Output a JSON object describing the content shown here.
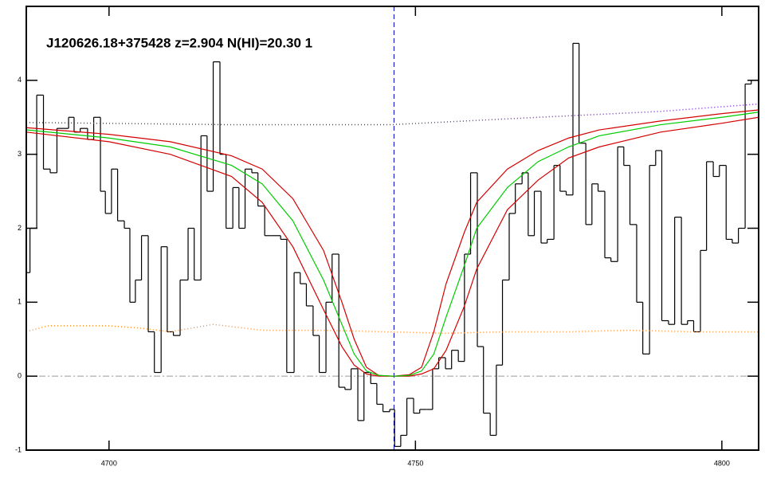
{
  "chart_data": {
    "type": "spectrum",
    "title": "J120626.18+375428 z=2.904 N(HI)=20.30 1",
    "xlim": [
      4686.5,
      4806.0
    ],
    "ylim": [
      -1,
      5
    ],
    "xticks": [
      4700,
      4750,
      4800
    ],
    "yticks": [
      -1,
      0,
      1,
      2,
      3,
      4
    ],
    "vline": {
      "x": 4746.5,
      "color": "#0000cc"
    },
    "hline": {
      "y": 0,
      "color": "#999999"
    },
    "series": [
      {
        "style": "step",
        "color": "#000000",
        "x": [
          4686.5,
          4687.1,
          4688.2,
          4689.3,
          4690.4,
          4691.5,
          4693.4,
          4694.3,
          4695.3,
          4696.5,
          4697.5,
          4698.6,
          4699.4,
          4700.4,
          4701.4,
          4702.5,
          4703.4,
          4704.3,
          4705.3,
          4706.4,
          4707.4,
          4708.5,
          4709.5,
          4710.5,
          4711.6,
          4712.9,
          4713.9,
          4715.0,
          4716.0,
          4717.0,
          4718.1,
          4719.1,
          4720.2,
          4721.2,
          4722.2,
          4723.3,
          4724.3,
          4725.4,
          4726.4,
          4728.0,
          4729.0,
          4730.2,
          4731.2,
          4732.2,
          4733.3,
          4734.3,
          4735.4,
          4736.4,
          4737.5,
          4738.5,
          4739.5,
          4740.6,
          4741.6,
          4742.7,
          4743.7,
          4744.7,
          4745.8,
          4746.6,
          4747.6,
          4748.6,
          4749.7,
          4750.7,
          4751.8,
          4752.8,
          4753.8,
          4754.9,
          4755.9,
          4757.0,
          4758.0,
          4759.0,
          4760.1,
          4761.1,
          4762.2,
          4763.2,
          4764.2,
          4765.3,
          4766.3,
          4767.4,
          4768.4,
          4769.4,
          4770.5,
          4771.5,
          4772.6,
          4773.6,
          4774.6,
          4775.7,
          4776.7,
          4777.8,
          4778.8,
          4779.8,
          4780.9,
          4781.9,
          4783.0,
          4784.0,
          4785.0,
          4786.1,
          4787.1,
          4788.2,
          4789.2,
          4790.2,
          4791.3,
          4792.3,
          4793.4,
          4794.4,
          4795.4,
          4796.5,
          4797.5,
          4798.6,
          4799.6,
          4800.7,
          4801.7,
          4802.7,
          4803.8,
          4804.8
        ],
        "values": [
          1.4,
          2.0,
          3.8,
          2.8,
          2.75,
          3.35,
          3.5,
          3.3,
          3.35,
          3.2,
          3.5,
          2.5,
          2.2,
          2.8,
          2.1,
          2.0,
          1.0,
          1.3,
          1.9,
          0.6,
          0.05,
          1.75,
          0.6,
          0.55,
          1.3,
          2.0,
          1.3,
          3.25,
          2.5,
          4.25,
          3.0,
          2.0,
          2.55,
          2.0,
          2.8,
          2.75,
          2.3,
          1.9,
          1.9,
          1.85,
          0.05,
          1.4,
          1.25,
          0.95,
          0.55,
          0.05,
          1.0,
          1.65,
          -0.15,
          -0.18,
          0.1,
          -0.6,
          0.05,
          -0.1,
          -0.38,
          -0.48,
          -0.45,
          -0.95,
          -0.8,
          -0.3,
          -0.5,
          -0.45,
          -0.45,
          0.1,
          0.25,
          0.1,
          0.35,
          0.2,
          1.65,
          2.75,
          0.4,
          -0.5,
          -0.8,
          0.15,
          1.3,
          2.2,
          2.6,
          2.75,
          1.9,
          2.5,
          1.8,
          1.85,
          2.85,
          2.5,
          2.45,
          4.5,
          3.15,
          2.05,
          2.6,
          2.5,
          1.6,
          1.55,
          3.1,
          2.85,
          2.05,
          1.0,
          0.3,
          2.85,
          3.05,
          0.75,
          0.7,
          2.15,
          0.7,
          0.75,
          0.6,
          1.7,
          2.9,
          2.7,
          2.85,
          1.85,
          1.8,
          2.0,
          3.95,
          4.0
        ]
      },
      {
        "style": "dotted",
        "color": "#ff8c1a",
        "x": [
          4686.5,
          4690,
          4700,
          4705,
          4710,
          4717,
          4725,
          4735,
          4745,
          4755,
          4765,
          4775,
          4785,
          4795,
          4806
        ],
        "values": [
          0.6,
          0.68,
          0.68,
          0.65,
          0.6,
          0.7,
          0.62,
          0.62,
          0.6,
          0.58,
          0.6,
          0.6,
          0.62,
          0.6,
          0.6
        ]
      },
      {
        "style": "dotted",
        "color": "#7a1fd6",
        "x": [
          4686.5,
          4720,
          4746,
          4770,
          4790,
          4806
        ],
        "values": [
          3.43,
          3.4,
          3.4,
          3.5,
          3.58,
          3.68
        ]
      },
      {
        "style": "solid",
        "color": "#d40000",
        "x": [
          4686.5,
          4700,
          4710,
          4720,
          4725,
          4730,
          4735,
          4738,
          4740,
          4742,
          4744,
          4746.5,
          4749,
          4751,
          4753,
          4755,
          4758,
          4760,
          4765,
          4770,
          4775,
          4780,
          4790,
          4800,
          4806
        ],
        "values": [
          3.36,
          3.27,
          3.17,
          2.98,
          2.8,
          2.4,
          1.7,
          1.0,
          0.5,
          0.12,
          0.01,
          0,
          0.02,
          0.12,
          0.6,
          1.25,
          1.95,
          2.35,
          2.8,
          3.05,
          3.22,
          3.33,
          3.45,
          3.55,
          3.6
        ]
      },
      {
        "style": "solid",
        "color": "#d40000",
        "x": [
          4686.5,
          4700,
          4710,
          4720,
          4725,
          4730,
          4735,
          4738,
          4740,
          4742,
          4744,
          4746.5,
          4749,
          4751,
          4753,
          4755,
          4758,
          4760,
          4765,
          4770,
          4775,
          4780,
          4790,
          4800,
          4806
        ],
        "values": [
          3.3,
          3.17,
          3.0,
          2.7,
          2.35,
          1.75,
          0.9,
          0.4,
          0.15,
          0.03,
          0.0,
          0,
          0.0,
          0.03,
          0.1,
          0.35,
          0.95,
          1.45,
          2.25,
          2.65,
          2.95,
          3.1,
          3.3,
          3.42,
          3.5
        ]
      },
      {
        "style": "solid",
        "color": "#00cc00",
        "x": [
          4686.5,
          4700,
          4710,
          4720,
          4725,
          4730,
          4735,
          4738,
          4740,
          4742,
          4744,
          4746.5,
          4749,
          4751,
          4753,
          4755,
          4758,
          4760,
          4765,
          4770,
          4775,
          4780,
          4790,
          4800,
          4806
        ],
        "values": [
          3.33,
          3.22,
          3.1,
          2.85,
          2.6,
          2.1,
          1.3,
          0.7,
          0.3,
          0.07,
          0.01,
          0,
          0.01,
          0.07,
          0.3,
          0.8,
          1.5,
          2.0,
          2.55,
          2.9,
          3.1,
          3.25,
          3.4,
          3.5,
          3.57
        ]
      }
    ]
  }
}
